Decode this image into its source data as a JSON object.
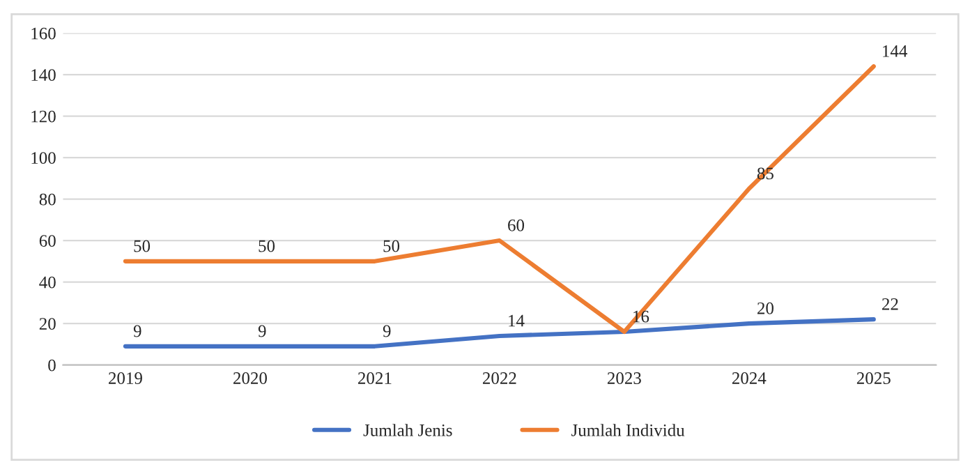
{
  "chart_data": {
    "type": "line",
    "categories": [
      "2019",
      "2020",
      "2021",
      "2022",
      "2023",
      "2024",
      "2025"
    ],
    "series": [
      {
        "name": "Jumlah Jenis",
        "color": "#4472c4",
        "values": [
          9,
          9,
          9,
          14,
          16,
          20,
          22
        ],
        "value_labels": [
          "9",
          "9",
          "9",
          "14",
          "16",
          "20",
          "22"
        ]
      },
      {
        "name": "Jumlah Individu",
        "color": "#ed7d31",
        "values": [
          50,
          50,
          50,
          60,
          16,
          85,
          144
        ],
        "value_labels": [
          "50",
          "50",
          "50",
          "60",
          null,
          "85",
          "144"
        ]
      }
    ],
    "ylim": [
      0,
      160
    ],
    "yticks": [
      0,
      20,
      40,
      60,
      80,
      100,
      120,
      140,
      160
    ],
    "grid": "y",
    "legend": "bottom",
    "marker": "none",
    "line_style": "solid"
  }
}
